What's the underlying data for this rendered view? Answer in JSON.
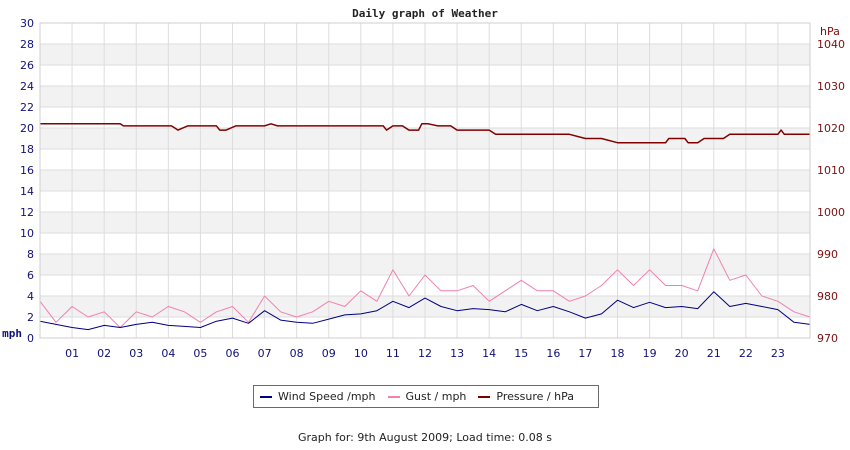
{
  "chart_data": {
    "type": "line",
    "title": "Daily graph of Weather",
    "x_tick_labels": [
      "01",
      "02",
      "03",
      "04",
      "05",
      "06",
      "07",
      "08",
      "09",
      "10",
      "11",
      "12",
      "13",
      "14",
      "15",
      "16",
      "17",
      "18",
      "19",
      "20",
      "21",
      "22",
      "23"
    ],
    "left_axis": {
      "unit_label": "mph",
      "ylim": [
        0,
        30
      ],
      "ticks": [
        0,
        2,
        4,
        6,
        8,
        10,
        12,
        14,
        16,
        18,
        20,
        22,
        24,
        26,
        28,
        30
      ]
    },
    "right_axis": {
      "unit_label": "hPa",
      "ylim": [
        970,
        1045
      ],
      "ticks": [
        970,
        980,
        990,
        1000,
        1010,
        1020,
        1030,
        1040
      ]
    },
    "grid": true,
    "legend_position": "bottom-center",
    "series": [
      {
        "name": "Wind Speed /mph",
        "axis": "left",
        "color": "#000080",
        "x": [
          0,
          0.5,
          1,
          1.5,
          2,
          2.5,
          3,
          3.5,
          4,
          4.5,
          5,
          5.5,
          6,
          6.5,
          7,
          7.5,
          8,
          8.5,
          9,
          9.5,
          10,
          10.5,
          11,
          11.5,
          12,
          12.5,
          13,
          13.5,
          14,
          14.5,
          15,
          15.5,
          16,
          16.5,
          17,
          17.5,
          18,
          18.5,
          19,
          19.5,
          20,
          20.5,
          21,
          21.5,
          22,
          22.5,
          23,
          23.5,
          24
        ],
        "values": [
          1.6,
          1.3,
          1.0,
          0.8,
          1.2,
          1.0,
          1.3,
          1.5,
          1.2,
          1.1,
          1.0,
          1.6,
          1.9,
          1.4,
          2.6,
          1.7,
          1.5,
          1.4,
          1.8,
          2.2,
          2.3,
          2.6,
          3.5,
          2.9,
          3.8,
          3.0,
          2.6,
          2.8,
          2.7,
          2.5,
          3.2,
          2.6,
          3.0,
          2.5,
          1.9,
          2.3,
          3.6,
          2.9,
          3.4,
          2.9,
          3.0,
          2.8,
          4.4,
          3.0,
          3.3,
          3.0,
          2.7,
          1.5,
          1.3
        ]
      },
      {
        "name": "Gust / mph",
        "axis": "left",
        "color": "#f080b0",
        "x": [
          0,
          0.5,
          1,
          1.5,
          2,
          2.5,
          3,
          3.5,
          4,
          4.5,
          5,
          5.5,
          6,
          6.5,
          7,
          7.5,
          8,
          8.5,
          9,
          9.5,
          10,
          10.5,
          11,
          11.5,
          12,
          12.5,
          13,
          13.5,
          14,
          14.5,
          15,
          15.5,
          16,
          16.5,
          17,
          17.5,
          18,
          18.5,
          19,
          19.5,
          20,
          20.5,
          21,
          21.5,
          22,
          22.5,
          23,
          23.5,
          24
        ],
        "values": [
          3.5,
          1.5,
          3.0,
          2.0,
          2.5,
          1.0,
          2.5,
          2.0,
          3.0,
          2.5,
          1.5,
          2.5,
          3.0,
          1.5,
          4.0,
          2.5,
          2.0,
          2.5,
          3.5,
          3.0,
          4.5,
          3.5,
          6.5,
          4.0,
          6.0,
          4.5,
          4.5,
          5.0,
          3.5,
          4.5,
          5.5,
          4.5,
          4.5,
          3.5,
          4.0,
          5.0,
          6.5,
          5.0,
          6.5,
          5.0,
          5.0,
          4.5,
          8.5,
          5.5,
          6.0,
          4.0,
          3.5,
          2.5,
          2.0
        ]
      },
      {
        "name": "Pressure / hPa",
        "axis": "right",
        "color": "#800000",
        "x": [
          0,
          2.5,
          2.6,
          4.1,
          4.2,
          4.3,
          4.6,
          5.5,
          5.6,
          5.8,
          6.1,
          7.0,
          7.2,
          7.4,
          10.7,
          10.8,
          11.0,
          11.3,
          11.5,
          11.8,
          11.9,
          12.1,
          12.4,
          12.8,
          13.0,
          14.0,
          14.2,
          16.0,
          16.5,
          17.0,
          17.5,
          18.0,
          18.5,
          19.0,
          19.5,
          19.6,
          20.1,
          20.2,
          20.5,
          20.7,
          21.3,
          21.5,
          21.7,
          22.5,
          23.0,
          23.1,
          23.2,
          24.0
        ],
        "values": [
          1021,
          1021,
          1020.5,
          1020.5,
          1020,
          1019.5,
          1020.5,
          1020.5,
          1019.5,
          1019.5,
          1020.5,
          1020.5,
          1021,
          1020.5,
          1020.5,
          1019.5,
          1020.5,
          1020.5,
          1019.5,
          1019.5,
          1021,
          1021,
          1020.5,
          1020.5,
          1019.5,
          1019.5,
          1018.5,
          1018.5,
          1018.5,
          1017.5,
          1017.5,
          1016.5,
          1016.5,
          1016.5,
          1016.5,
          1017.5,
          1017.5,
          1016.5,
          1016.5,
          1017.5,
          1017.5,
          1018.5,
          1018.5,
          1018.5,
          1018.5,
          1019.5,
          1018.5,
          1018.5
        ]
      }
    ]
  },
  "footer": {
    "text": "Graph for: 9th August 2009; Load time: 0.08 s"
  }
}
